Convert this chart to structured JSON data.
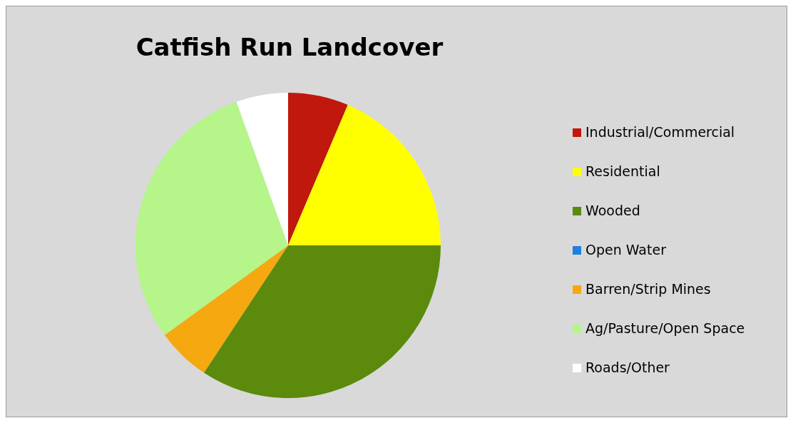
{
  "chart_data": {
    "type": "pie",
    "title": "Catfish Run Landcover",
    "categories": [
      "Industrial/Commercial",
      "Residential",
      "Wooded",
      "Open Water",
      "Barren/Strip Mines",
      "Ag/Pasture/Open Space",
      "Roads/Other"
    ],
    "values": [
      6.4,
      18.6,
      34.3,
      0,
      5.7,
      29.5,
      5.5
    ],
    "colors": [
      "#c0180c",
      "#ffff00",
      "#5b8a0c",
      "#1f7fe0",
      "#f5a810",
      "#b5f58a",
      "#ffffff"
    ],
    "legend": "right"
  }
}
